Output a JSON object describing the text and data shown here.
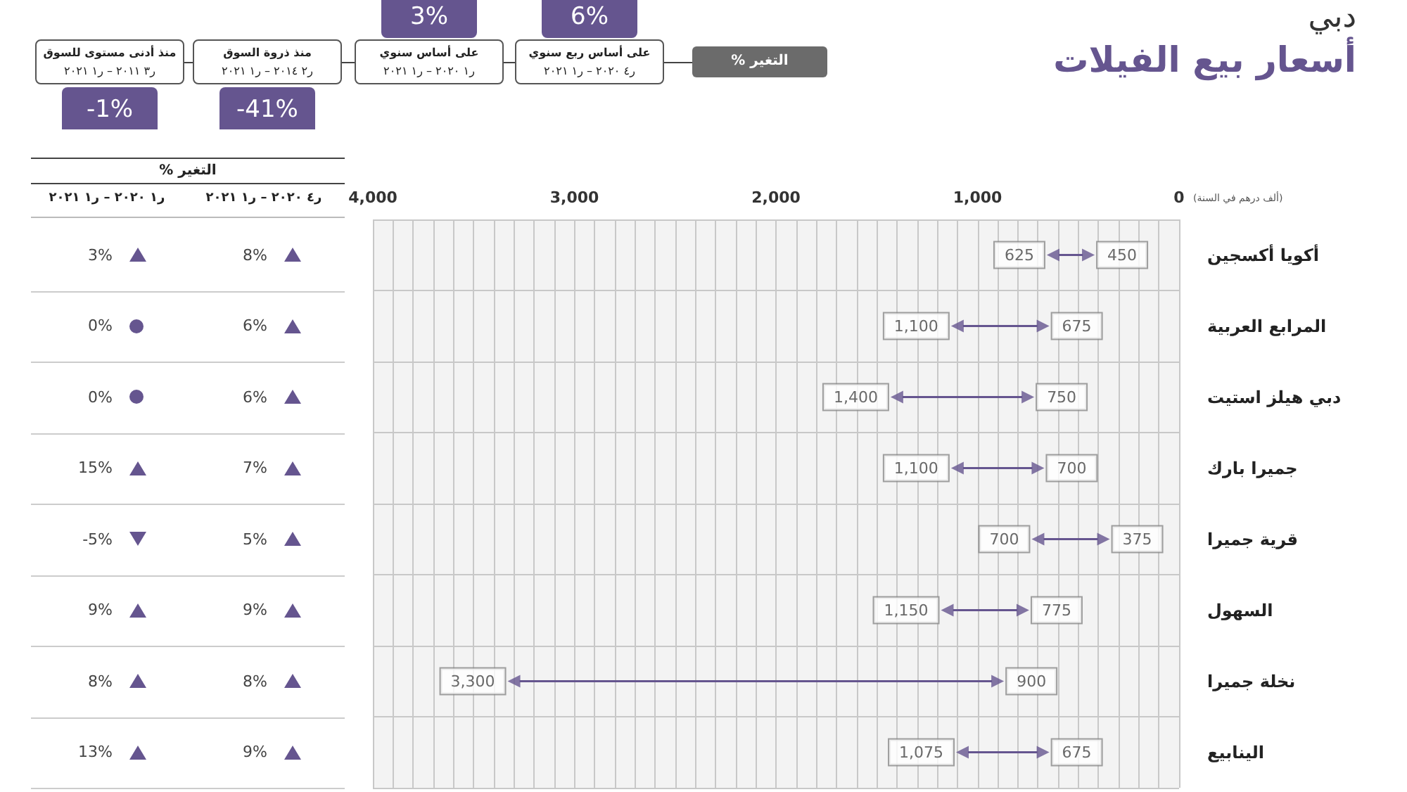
{
  "chart_data": {
    "type": "scatter",
    "title": "أسعار بيع الفيلات",
    "subtitle": "دبي",
    "xlabel": "(ألف درهم في السنة)",
    "annotations": [
      "% التغير",
      "على أساس ربع سنوي",
      "ر٤ ٢٠٢٠ – ر١ ٢٠٢١",
      "6%",
      "على أساس سنوي",
      "ر١ ٢٠٢٠ – ر١ ٢٠٢١",
      "3%",
      "منذ ذروة السوق",
      "ر٢ ٢٠١٤ – ر١ ٢٠٢١",
      "-41%",
      "منذ أدنى مستوى للسوق",
      "ر٣ ٢٠١١ – ر١ ٢٠٢١",
      "-1%",
      "% التغير",
      "ر٤ ٢٠٢٠ – ر١ ٢٠٢١",
      "ر١ ٢٠٢٠ – ر١ ٢٠٢١",
      "8%",
      "3%",
      "6%",
      "0%",
      "6%",
      "0%",
      "7%",
      "15%",
      "5%",
      "-5%",
      "9%",
      "9%",
      "8%",
      "8%",
      "9%",
      "13%"
    ],
    "categories": [
      "أكويا أكسجين",
      "المرابع العربية",
      "دبي هيلز استيت",
      "جميرا بارك",
      "قرية جميرا",
      "السهول",
      "نخلة جميرا",
      "الينابيع"
    ],
    "orientation": "horizontal",
    "series": [
      {
        "color": "#65558f",
        "values": [
          625,
          1100,
          1400,
          1100,
          700,
          1150,
          3300,
          1075
        ],
        "value_labels": [
          "625",
          "1,100",
          "1,400",
          "1,100",
          "700",
          "1,150",
          "3,300",
          "1,075"
        ]
      },
      {
        "color": "#65558f",
        "values": [
          450,
          675,
          750,
          700,
          375,
          775,
          900,
          675
        ],
        "value_labels": [
          "450",
          "675",
          "750",
          "700",
          "375",
          "775",
          "900",
          "675"
        ]
      }
    ],
    "xlim": [
      4000,
      0
    ],
    "xticks": [
      0,
      {
        "value": 1000,
        "label": "1,000"
      },
      {
        "value": 2000,
        "label": "2,000"
      },
      {
        "value": 3000,
        "label": "3,000"
      },
      {
        "value": 4000,
        "label": "4,000"
      }
    ],
    "grid": true
  }
}
